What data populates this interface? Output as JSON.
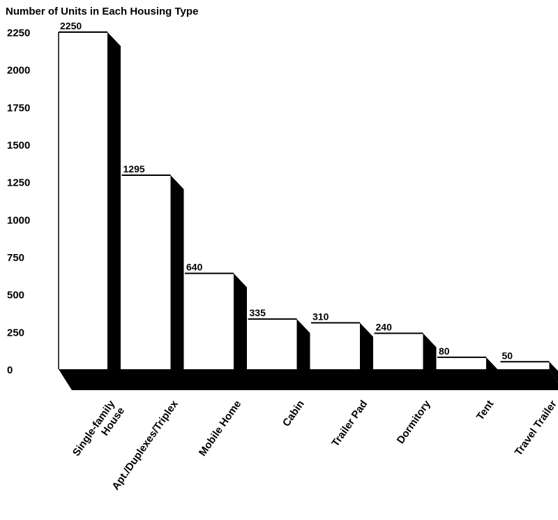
{
  "chart_data": {
    "type": "bar",
    "title": "Number of Units in Each Housing Type",
    "categories": [
      "Single-family House",
      "Apt./Duplexes/Triplex",
      "Mobile Home",
      "Cabin",
      "Trailer Pad",
      "Dormitory",
      "Tent",
      "Travel Trailer"
    ],
    "category_lines": [
      [
        "Single-family",
        "House"
      ],
      [
        "Apt./Duplexes/Triplex"
      ],
      [
        "Mobile Home"
      ],
      [
        "Cabin"
      ],
      [
        "Trailer Pad"
      ],
      [
        "Dormitory"
      ],
      [
        "Tent"
      ],
      [
        "Travel Trailer"
      ]
    ],
    "values": [
      2250,
      1295,
      640,
      335,
      310,
      240,
      80,
      50
    ],
    "value_labels": [
      "2250",
      "1295",
      "640",
      "335",
      "310",
      "240",
      "80",
      "50"
    ],
    "y_ticks": [
      0,
      250,
      500,
      750,
      1000,
      1250,
      1500,
      1750,
      2000,
      2250
    ],
    "ylim": [
      0,
      2250
    ],
    "xlabel": "",
    "ylabel": "",
    "grid": false,
    "legend": "none",
    "colors": {
      "bar_face": "#ffffff",
      "bar_side": "#000000",
      "floor": "#000000",
      "text": "#000000"
    }
  }
}
